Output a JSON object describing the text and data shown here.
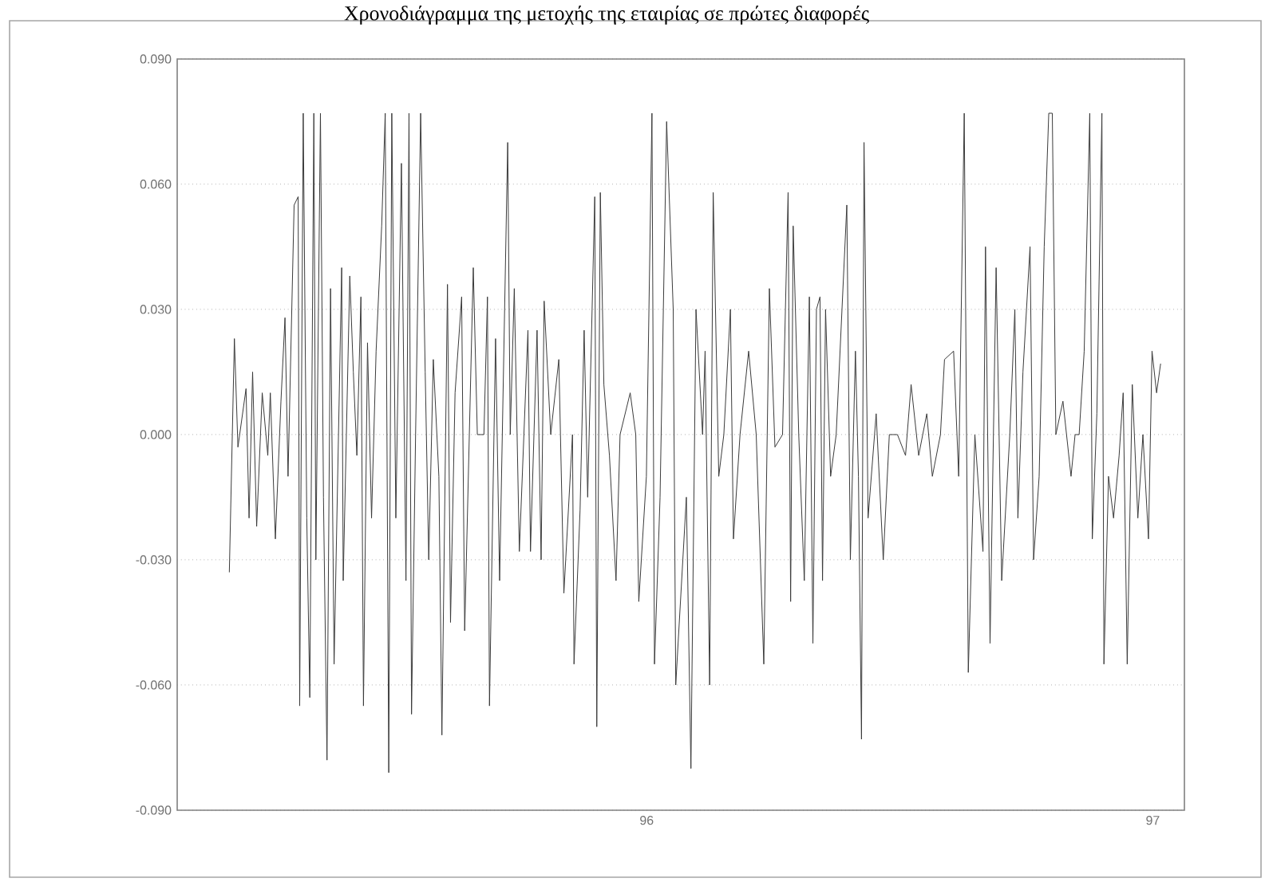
{
  "chart_data": {
    "type": "line",
    "title": "Χρονοδιάγραμμα της μετοχής της εταιρίας σε πρώτες διαφορές",
    "x": [
      95.163,
      95.173,
      95.18,
      95.196,
      95.202,
      95.209,
      95.217,
      95.228,
      95.239,
      95.244,
      95.254,
      95.265,
      95.273,
      95.279,
      95.291,
      95.299,
      95.302,
      95.309,
      95.316,
      95.322,
      95.33,
      95.334,
      95.343,
      95.349,
      95.356,
      95.363,
      95.37,
      95.385,
      95.388,
      95.401,
      95.408,
      95.415,
      95.423,
      95.428,
      95.436,
      95.444,
      95.453,
      95.464,
      95.471,
      95.478,
      95.484,
      95.492,
      95.503,
      95.512,
      95.518,
      95.523,
      95.531,
      95.541,
      95.55,
      95.557,
      95.566,
      95.577,
      95.583,
      95.594,
      95.6,
      95.609,
      95.622,
      95.628,
      95.645,
      95.653,
      95.666,
      95.673,
      95.677,
      95.689,
      95.697,
      95.713,
      95.718,
      95.726,
      95.736,
      95.745,
      95.753,
      95.758,
      95.771,
      95.779,
      95.785,
      95.798,
      95.814,
      95.824,
      95.841,
      95.844,
      95.856,
      95.864,
      95.871,
      95.885,
      95.889,
      95.896,
      95.903,
      95.914,
      95.927,
      95.935,
      95.955,
      95.966,
      95.972,
      95.987,
      95.998,
      96.003,
      96.014,
      96.027,
      96.04,
      96.045,
      96.066,
      96.075,
      96.085,
      96.098,
      96.103,
      96.112,
      96.119,
      96.13,
      96.14,
      96.153,
      96.159,
      96.172,
      96.189,
      96.204,
      96.219,
      96.23,
      96.241,
      96.256,
      96.267,
      96.272,
      96.277,
      96.288,
      96.299,
      96.309,
      96.316,
      96.323,
      96.33,
      96.335,
      96.341,
      96.351,
      96.362,
      96.383,
      96.39,
      96.4,
      96.406,
      96.412,
      96.417,
      96.425,
      96.441,
      96.455,
      96.467,
      96.483,
      96.499,
      96.51,
      96.525,
      96.541,
      96.552,
      96.568,
      96.576,
      96.594,
      96.604,
      96.615,
      96.623,
      96.636,
      96.652,
      96.657,
      96.666,
      96.678,
      96.689,
      96.705,
      96.715,
      96.721,
      96.731,
      96.745,
      96.752,
      96.763,
      96.773,
      96.782,
      96.789,
      96.796,
      96.81,
      96.826,
      96.834,
      96.842,
      96.852,
      96.863,
      96.868,
      96.877,
      96.887,
      96.891,
      96.9,
      96.91,
      96.921,
      96.929,
      96.937,
      96.947,
      96.958,
      96.968,
      96.979,
      96.986,
      96.995,
      97.003
    ],
    "series": [
      {
        "color": "#3a3a3a",
        "values": [
          -0.033,
          0.023,
          -0.003,
          0.011,
          -0.02,
          0.015,
          -0.022,
          0.01,
          -0.005,
          0.01,
          -0.025,
          0.008,
          0.028,
          -0.01,
          0.055,
          0.057,
          -0.065,
          0.077,
          -0.02,
          -0.063,
          0.077,
          -0.03,
          0.077,
          -0.015,
          -0.078,
          0.035,
          -0.055,
          0.04,
          -0.035,
          0.038,
          0.015,
          -0.005,
          0.033,
          -0.065,
          0.022,
          -0.02,
          0.02,
          0.05,
          0.077,
          -0.081,
          0.077,
          -0.02,
          0.065,
          -0.035,
          0.077,
          -0.067,
          0.0,
          0.077,
          0.015,
          -0.03,
          0.018,
          -0.01,
          -0.072,
          0.036,
          -0.045,
          0.01,
          0.033,
          -0.047,
          0.04,
          0.0,
          0.0,
          0.033,
          -0.065,
          0.023,
          -0.035,
          0.07,
          0.0,
          0.035,
          -0.028,
          0.0,
          0.025,
          -0.028,
          0.025,
          -0.03,
          0.032,
          0.0,
          0.018,
          -0.038,
          0.0,
          -0.055,
          -0.018,
          0.025,
          -0.015,
          0.057,
          -0.07,
          0.058,
          0.012,
          -0.005,
          -0.035,
          0.0,
          0.01,
          0.0,
          -0.04,
          -0.01,
          0.077,
          -0.055,
          -0.015,
          0.075,
          0.03,
          -0.06,
          -0.015,
          -0.08,
          0.03,
          0.0,
          0.02,
          -0.06,
          0.058,
          -0.01,
          0.0,
          0.03,
          -0.025,
          0.0,
          0.02,
          0.0,
          -0.055,
          0.035,
          -0.003,
          0.0,
          0.058,
          -0.04,
          0.05,
          0.0,
          -0.035,
          0.033,
          -0.05,
          0.03,
          0.033,
          -0.035,
          0.03,
          -0.01,
          0.0,
          0.055,
          -0.03,
          0.02,
          -0.01,
          -0.073,
          0.07,
          -0.02,
          0.005,
          -0.03,
          0.0,
          0.0,
          -0.005,
          0.012,
          -0.005,
          0.005,
          -0.01,
          0.0,
          0.018,
          0.02,
          -0.01,
          0.077,
          -0.057,
          0.0,
          -0.028,
          0.045,
          -0.05,
          0.04,
          -0.035,
          0.0,
          0.03,
          -0.02,
          0.015,
          0.045,
          -0.03,
          -0.01,
          0.045,
          0.077,
          0.077,
          0.0,
          0.008,
          -0.01,
          0.0,
          0.0,
          0.02,
          0.077,
          -0.025,
          0.005,
          0.077,
          -0.055,
          -0.01,
          -0.02,
          -0.005,
          0.01,
          -0.055,
          0.012,
          -0.02,
          0.0,
          -0.025,
          0.02,
          0.01,
          0.017
        ]
      }
    ],
    "xlim": [
      95.06,
      97.05
    ],
    "xticks": [
      96,
      97
    ],
    "ylim": [
      -0.09,
      0.09
    ],
    "yticks": [
      {
        "value": -0.09,
        "label": "-0.090"
      },
      {
        "value": -0.06,
        "label": "-0.060"
      },
      {
        "value": -0.03,
        "label": "-0.030"
      },
      {
        "value": 0,
        "label": "0.000"
      },
      {
        "value": 0.03,
        "label": "0.030"
      },
      {
        "value": 0.06,
        "label": "0.060"
      },
      {
        "value": 0.09,
        "label": "0.090"
      }
    ],
    "grid": "y",
    "marker": "none",
    "line_style": "solid"
  }
}
